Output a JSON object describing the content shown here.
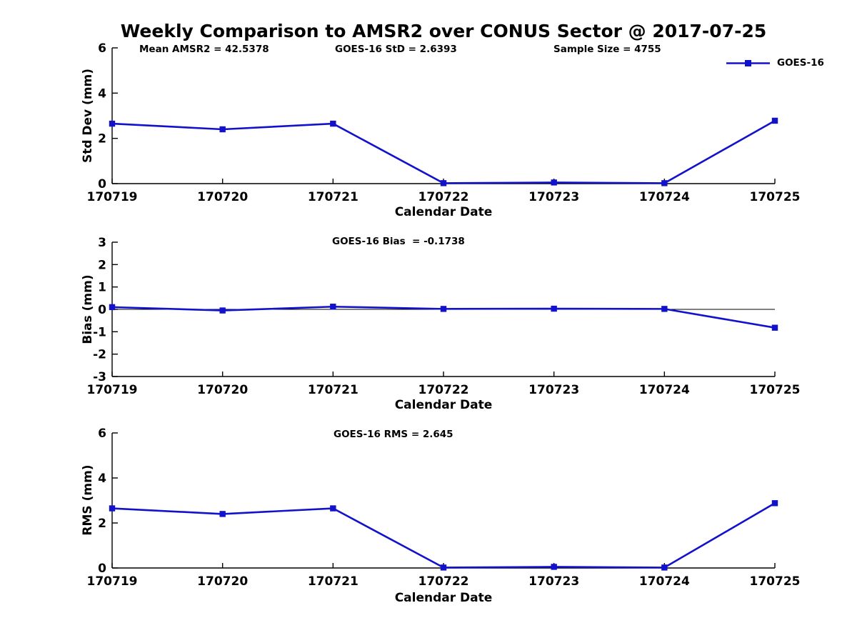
{
  "figure": {
    "title": "Weekly Comparison to AMSR2 over CONUS Sector @ 2017-07-25",
    "legend": {
      "label": "GOES-16",
      "position": "top-right"
    },
    "colors": {
      "series": "#1212cc",
      "axis": "#000000",
      "text": "#000000",
      "background": "#ffffff"
    }
  },
  "chart_data": [
    {
      "type": "line",
      "id": "std-dev",
      "categories": [
        "170719",
        "170720",
        "170721",
        "170722",
        "170723",
        "170724",
        "170725"
      ],
      "series": [
        {
          "name": "GOES-16",
          "values": [
            2.65,
            2.4,
            2.65,
            0.02,
            0.05,
            0.02,
            2.78
          ]
        }
      ],
      "xlabel": "Calendar Date",
      "ylabel": "Std Dev (mm)",
      "ylim": [
        0,
        6
      ],
      "yticks": [
        0,
        2,
        4,
        6
      ],
      "grid": false,
      "annotations": [
        "Mean AMSR2 = 42.5378",
        "GOES-16 StD = 2.6393",
        "Sample Size = 4755"
      ]
    },
    {
      "type": "line",
      "id": "bias",
      "categories": [
        "170719",
        "170720",
        "170721",
        "170722",
        "170723",
        "170724",
        "170725"
      ],
      "series": [
        {
          "name": "GOES-16",
          "values": [
            0.1,
            -0.05,
            0.12,
            0.02,
            0.03,
            0.02,
            -0.82
          ]
        }
      ],
      "xlabel": "Calendar Date",
      "ylabel": "Bias (mm)",
      "ylim": [
        -3,
        3
      ],
      "yticks": [
        3,
        2,
        1,
        0,
        -1,
        -2,
        -3
      ],
      "zero_line": true,
      "grid": false,
      "annotations": [
        "GOES-16 Bias  = -0.1738"
      ]
    },
    {
      "type": "line",
      "id": "rms",
      "categories": [
        "170719",
        "170720",
        "170721",
        "170722",
        "170723",
        "170724",
        "170725"
      ],
      "series": [
        {
          "name": "GOES-16",
          "values": [
            2.65,
            2.4,
            2.65,
            0.02,
            0.05,
            0.02,
            2.88
          ]
        }
      ],
      "xlabel": "Calendar Date",
      "ylabel": "RMS (mm)",
      "ylim": [
        0,
        6
      ],
      "yticks": [
        0,
        2,
        4,
        6
      ],
      "grid": false,
      "annotations": [
        "GOES-16 RMS = 2.645"
      ]
    }
  ]
}
